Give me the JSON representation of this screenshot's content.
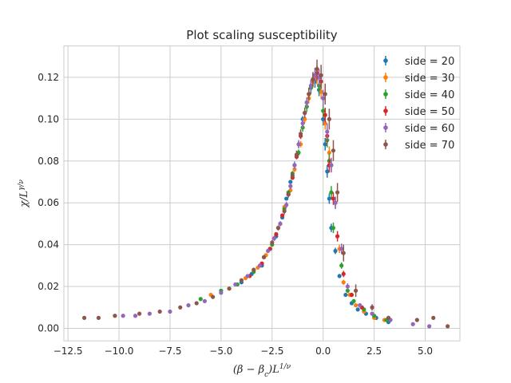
{
  "chart_data": {
    "type": "scatter",
    "title": "Plot scaling susceptibility",
    "xlabel": "(β − β_c)L^{1/ν}",
    "ylabel": "χ/L^{γ/ν}",
    "xlim": [
      -12.7,
      6.7
    ],
    "ylim": [
      -0.006,
      0.135
    ],
    "x_ticks": [
      -12.5,
      -10.0,
      -7.5,
      -5.0,
      -2.5,
      0.0,
      2.5,
      5.0
    ],
    "x_tick_labels": [
      "−12.5",
      "−10.0",
      "−7.5",
      "−5.0",
      "−2.5",
      "0.0",
      "2.5",
      "5.0"
    ],
    "y_ticks": [
      0.0,
      0.02,
      0.04,
      0.06,
      0.08,
      0.1,
      0.12
    ],
    "y_tick_labels": [
      "0.00",
      "0.02",
      "0.04",
      "0.06",
      "0.08",
      "0.10",
      "0.12"
    ],
    "grid": true,
    "legend_position": "top-right",
    "series": [
      {
        "name": "side = 20",
        "color": "#1f77b4",
        "points": [
          [
            -4.0,
            0.022
          ],
          [
            -3.5,
            0.026
          ],
          [
            -3.0,
            0.03
          ],
          [
            -2.6,
            0.038
          ],
          [
            -2.3,
            0.044
          ],
          [
            -2.0,
            0.053
          ],
          [
            -1.8,
            0.062
          ],
          [
            -1.6,
            0.07
          ],
          [
            -1.4,
            0.078
          ],
          [
            -1.2,
            0.088
          ],
          [
            -1.0,
            0.1
          ],
          [
            -0.8,
            0.108
          ],
          [
            -0.6,
            0.115
          ],
          [
            -0.4,
            0.118
          ],
          [
            -0.2,
            0.114
          ],
          [
            0.0,
            0.1
          ],
          [
            0.1,
            0.088
          ],
          [
            0.2,
            0.075
          ],
          [
            0.3,
            0.062
          ],
          [
            0.4,
            0.048
          ],
          [
            0.6,
            0.037
          ],
          [
            0.8,
            0.025
          ],
          [
            1.1,
            0.016
          ],
          [
            1.4,
            0.012
          ],
          [
            1.7,
            0.009
          ],
          [
            2.1,
            0.007
          ],
          [
            2.6,
            0.005
          ],
          [
            3.2,
            0.003
          ]
        ],
        "errors": [
          0.0005,
          0.0005,
          0.0006,
          0.0006,
          0.0006,
          0.0008,
          0.0008,
          0.0008,
          0.001,
          0.0012,
          0.0015,
          0.002,
          0.0025,
          0.003,
          0.003,
          0.003,
          0.003,
          0.003,
          0.0025,
          0.002,
          0.0015,
          0.001,
          0.0008,
          0.0006,
          0.0005,
          0.0004,
          0.0004,
          0.0003
        ]
      },
      {
        "name": "side = 30",
        "color": "#ff7f0e",
        "points": [
          [
            -5.5,
            0.016
          ],
          [
            -4.6,
            0.019
          ],
          [
            -3.8,
            0.024
          ],
          [
            -3.2,
            0.029
          ],
          [
            -2.8,
            0.035
          ],
          [
            -2.4,
            0.043
          ],
          [
            -2.1,
            0.05
          ],
          [
            -1.9,
            0.058
          ],
          [
            -1.6,
            0.066
          ],
          [
            -1.4,
            0.076
          ],
          [
            -1.1,
            0.088
          ],
          [
            -0.9,
            0.1
          ],
          [
            -0.7,
            0.11
          ],
          [
            -0.5,
            0.118
          ],
          [
            -0.3,
            0.12
          ],
          [
            -0.1,
            0.113
          ],
          [
            0.1,
            0.098
          ],
          [
            0.3,
            0.084
          ],
          [
            0.4,
            0.078
          ],
          [
            0.6,
            0.06
          ],
          [
            0.8,
            0.038
          ],
          [
            1.0,
            0.022
          ],
          [
            1.3,
            0.016
          ],
          [
            1.6,
            0.011
          ],
          [
            2.0,
            0.008
          ],
          [
            2.5,
            0.005
          ],
          [
            3.0,
            0.004
          ]
        ],
        "errors": [
          0.0005,
          0.0005,
          0.0005,
          0.0006,
          0.0006,
          0.0008,
          0.0008,
          0.001,
          0.001,
          0.0012,
          0.0015,
          0.002,
          0.0025,
          0.003,
          0.0035,
          0.0035,
          0.003,
          0.003,
          0.003,
          0.0025,
          0.002,
          0.0012,
          0.001,
          0.0008,
          0.0006,
          0.0005,
          0.0004
        ]
      },
      {
        "name": "side = 40",
        "color": "#2ca02c",
        "points": [
          [
            -6.0,
            0.014
          ],
          [
            -5.0,
            0.018
          ],
          [
            -4.2,
            0.021
          ],
          [
            -3.4,
            0.027
          ],
          [
            -2.9,
            0.034
          ],
          [
            -2.5,
            0.04
          ],
          [
            -2.2,
            0.048
          ],
          [
            -1.9,
            0.057
          ],
          [
            -1.7,
            0.065
          ],
          [
            -1.5,
            0.074
          ],
          [
            -1.2,
            0.084
          ],
          [
            -1.0,
            0.096
          ],
          [
            -0.8,
            0.106
          ],
          [
            -0.6,
            0.115
          ],
          [
            -0.4,
            0.121
          ],
          [
            -0.2,
            0.116
          ],
          [
            0.0,
            0.104
          ],
          [
            0.2,
            0.09
          ],
          [
            0.3,
            0.08
          ],
          [
            0.4,
            0.065
          ],
          [
            0.5,
            0.048
          ],
          [
            0.9,
            0.03
          ],
          [
            1.2,
            0.018
          ],
          [
            1.5,
            0.013
          ],
          [
            2.0,
            0.009
          ],
          [
            2.5,
            0.006
          ],
          [
            3.1,
            0.004
          ]
        ],
        "errors": [
          0.0005,
          0.0005,
          0.0005,
          0.0006,
          0.0006,
          0.0008,
          0.0008,
          0.001,
          0.001,
          0.0012,
          0.0015,
          0.002,
          0.0025,
          0.003,
          0.0035,
          0.0035,
          0.0035,
          0.0035,
          0.0035,
          0.003,
          0.0025,
          0.0015,
          0.001,
          0.0008,
          0.0006,
          0.0005,
          0.0004
        ]
      },
      {
        "name": "side = 50",
        "color": "#d62728",
        "points": [
          [
            -3.6,
            0.025
          ],
          [
            -3.0,
            0.031
          ],
          [
            -2.6,
            0.038
          ],
          [
            -2.3,
            0.045
          ],
          [
            -2.0,
            0.054
          ],
          [
            -1.7,
            0.064
          ],
          [
            -1.5,
            0.072
          ],
          [
            -1.3,
            0.082
          ],
          [
            -1.1,
            0.092
          ],
          [
            -0.9,
            0.103
          ],
          [
            -0.7,
            0.112
          ],
          [
            -0.5,
            0.119
          ],
          [
            -0.3,
            0.122
          ],
          [
            -0.1,
            0.118
          ],
          [
            0.1,
            0.102
          ],
          [
            0.2,
            0.092
          ],
          [
            0.3,
            0.078
          ],
          [
            0.5,
            0.062
          ],
          [
            0.7,
            0.044
          ],
          [
            1.0,
            0.026
          ],
          [
            1.4,
            0.016
          ],
          [
            1.9,
            0.01
          ]
        ],
        "errors": [
          0.0006,
          0.0006,
          0.0006,
          0.0008,
          0.0008,
          0.001,
          0.001,
          0.0012,
          0.0015,
          0.0018,
          0.0022,
          0.003,
          0.0035,
          0.0035,
          0.0035,
          0.0035,
          0.0035,
          0.003,
          0.0025,
          0.0015,
          0.001,
          0.0008
        ]
      },
      {
        "name": "side = 60",
        "color": "#9467bd",
        "points": [
          [
            -9.8,
            0.006
          ],
          [
            -9.2,
            0.006
          ],
          [
            -8.5,
            0.007
          ],
          [
            -7.5,
            0.008
          ],
          [
            -6.6,
            0.011
          ],
          [
            -5.8,
            0.013
          ],
          [
            -5.0,
            0.017
          ],
          [
            -4.3,
            0.021
          ],
          [
            -3.7,
            0.025
          ],
          [
            -3.1,
            0.03
          ],
          [
            -2.7,
            0.037
          ],
          [
            -2.4,
            0.043
          ],
          [
            -2.1,
            0.05
          ],
          [
            -1.8,
            0.059
          ],
          [
            -1.6,
            0.068
          ],
          [
            -1.4,
            0.078
          ],
          [
            -1.2,
            0.088
          ],
          [
            -1.0,
            0.098
          ],
          [
            -0.8,
            0.108
          ],
          [
            -0.6,
            0.116
          ],
          [
            -0.4,
            0.121
          ],
          [
            -0.2,
            0.12
          ],
          [
            0.0,
            0.11
          ],
          [
            0.2,
            0.094
          ],
          [
            0.4,
            0.078
          ],
          [
            0.6,
            0.06
          ],
          [
            0.9,
            0.038
          ],
          [
            1.2,
            0.02
          ],
          [
            1.8,
            0.011
          ],
          [
            2.4,
            0.007
          ],
          [
            3.3,
            0.004
          ],
          [
            4.4,
            0.002
          ],
          [
            5.2,
            0.001
          ]
        ],
        "errors": [
          0.0004,
          0.0004,
          0.0004,
          0.0005,
          0.0005,
          0.0006,
          0.0006,
          0.0008,
          0.0008,
          0.001,
          0.001,
          0.0012,
          0.0012,
          0.0015,
          0.0015,
          0.0018,
          0.002,
          0.0022,
          0.0025,
          0.003,
          0.0035,
          0.004,
          0.004,
          0.004,
          0.0035,
          0.003,
          0.0025,
          0.0015,
          0.001,
          0.0008,
          0.0006,
          0.0005,
          0.0004
        ]
      },
      {
        "name": "side = 70",
        "color": "#8c564b",
        "points": [
          [
            -11.7,
            0.005
          ],
          [
            -11.0,
            0.005
          ],
          [
            -10.2,
            0.006
          ],
          [
            -9.0,
            0.007
          ],
          [
            -8.0,
            0.008
          ],
          [
            -7.0,
            0.01
          ],
          [
            -6.2,
            0.012
          ],
          [
            -5.4,
            0.015
          ],
          [
            -4.6,
            0.019
          ],
          [
            -4.0,
            0.023
          ],
          [
            -3.4,
            0.028
          ],
          [
            -2.9,
            0.034
          ],
          [
            -2.5,
            0.041
          ],
          [
            -2.2,
            0.048
          ],
          [
            -1.9,
            0.056
          ],
          [
            -1.7,
            0.064
          ],
          [
            -1.5,
            0.073
          ],
          [
            -1.3,
            0.083
          ],
          [
            -1.1,
            0.093
          ],
          [
            -0.9,
            0.103
          ],
          [
            -0.7,
            0.112
          ],
          [
            -0.5,
            0.119
          ],
          [
            -0.3,
            0.124
          ],
          [
            -0.1,
            0.121
          ],
          [
            0.1,
            0.112
          ],
          [
            0.3,
            0.1
          ],
          [
            0.5,
            0.085
          ],
          [
            0.7,
            0.065
          ],
          [
            1.0,
            0.036
          ],
          [
            1.6,
            0.018
          ],
          [
            2.4,
            0.01
          ],
          [
            3.2,
            0.005
          ],
          [
            4.6,
            0.004
          ],
          [
            5.4,
            0.005
          ],
          [
            6.1,
            0.001
          ]
        ],
        "errors": [
          0.0004,
          0.0004,
          0.0004,
          0.0004,
          0.0005,
          0.0005,
          0.0006,
          0.0006,
          0.0008,
          0.0008,
          0.001,
          0.001,
          0.0012,
          0.0012,
          0.0015,
          0.0015,
          0.0018,
          0.002,
          0.0022,
          0.0025,
          0.003,
          0.0035,
          0.0045,
          0.005,
          0.005,
          0.005,
          0.005,
          0.0045,
          0.004,
          0.003,
          0.0015,
          0.001,
          0.0008,
          0.0008,
          0.0006
        ]
      }
    ]
  }
}
